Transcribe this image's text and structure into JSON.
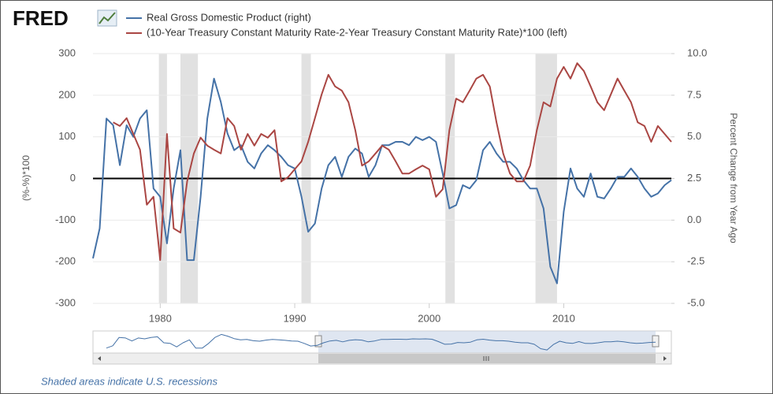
{
  "chart_data": {
    "type": "line",
    "logo": "FRED",
    "footnote": "Shaded areas indicate U.S. recessions",
    "ylabel": "(%-%)*100",
    "y2label": "Percent Change from Year Ago",
    "xlim": [
      1975,
      2018
    ],
    "xticks": [
      1980,
      1990,
      2000,
      2010
    ],
    "ylim": [
      -300,
      300
    ],
    "yticks": [
      -300,
      -200,
      -100,
      0,
      100,
      200,
      300
    ],
    "y2lim": [
      -5,
      10
    ],
    "y2ticks": [
      {
        "value": -5,
        "label": "-5.0"
      },
      {
        "value": -2.5,
        "label": "-2.5"
      },
      {
        "value": 0,
        "label": "0.0"
      },
      {
        "value": 2.5,
        "label": "2.5"
      },
      {
        "value": 5,
        "label": "5.0"
      },
      {
        "value": 7.5,
        "label": "7.5"
      },
      {
        "value": 10,
        "label": "10.0"
      }
    ],
    "grid": true,
    "recessions": [
      [
        1979.9,
        1980.5
      ],
      [
        1981.5,
        1982.8
      ],
      [
        1990.5,
        1991.2
      ],
      [
        2001.2,
        2001.9
      ],
      [
        2007.9,
        2009.5
      ]
    ],
    "x": [
      1975.0,
      1975.5,
      1976.0,
      1976.5,
      1977.0,
      1977.5,
      1978.0,
      1978.5,
      1979.0,
      1979.5,
      1980.0,
      1980.5,
      1981.0,
      1981.5,
      1982.0,
      1982.5,
      1983.0,
      1983.5,
      1984.0,
      1984.5,
      1985.0,
      1985.5,
      1986.0,
      1986.5,
      1987.0,
      1987.5,
      1988.0,
      1988.5,
      1989.0,
      1989.5,
      1990.0,
      1990.5,
      1991.0,
      1991.5,
      1992.0,
      1992.5,
      1993.0,
      1993.5,
      1994.0,
      1994.5,
      1995.0,
      1995.5,
      1996.0,
      1996.5,
      1997.0,
      1997.5,
      1998.0,
      1998.5,
      1999.0,
      1999.5,
      2000.0,
      2000.5,
      2001.0,
      2001.5,
      2002.0,
      2002.5,
      2003.0,
      2003.5,
      2004.0,
      2004.5,
      2005.0,
      2005.5,
      2006.0,
      2006.5,
      2007.0,
      2007.5,
      2008.0,
      2008.5,
      2009.0,
      2009.5,
      2010.0,
      2010.5,
      2011.0,
      2011.5,
      2012.0,
      2012.5,
      2013.0,
      2013.5,
      2014.0,
      2014.5,
      2015.0,
      2015.5,
      2016.0,
      2016.5,
      2017.0,
      2017.5,
      2018.0
    ],
    "series": [
      {
        "name": "Real Gross Domestic Product (right)",
        "color": "#4572a7",
        "axis": "y2",
        "values": [
          -2.3,
          -0.5,
          6.1,
          5.7,
          3.3,
          5.7,
          5.0,
          6.1,
          6.6,
          1.9,
          1.4,
          -1.4,
          1.9,
          4.2,
          -2.4,
          -2.4,
          1.4,
          6.1,
          8.5,
          7.1,
          5.2,
          4.2,
          4.5,
          3.5,
          3.1,
          4.0,
          4.5,
          4.2,
          3.8,
          3.3,
          3.1,
          1.4,
          -0.7,
          -0.2,
          1.9,
          3.3,
          3.8,
          2.6,
          3.8,
          4.3,
          4.0,
          2.6,
          3.3,
          4.5,
          4.5,
          4.7,
          4.7,
          4.5,
          5.0,
          4.8,
          5.0,
          4.7,
          2.8,
          0.7,
          0.9,
          2.1,
          1.9,
          2.4,
          4.2,
          4.7,
          4.0,
          3.5,
          3.5,
          3.1,
          2.4,
          1.9,
          1.9,
          0.7,
          -2.8,
          -3.8,
          0.5,
          3.1,
          1.9,
          1.4,
          2.8,
          1.4,
          1.3,
          1.9,
          2.6,
          2.6,
          3.1,
          2.6,
          1.9,
          1.4,
          1.6,
          2.1,
          2.4
        ]
      },
      {
        "name": "(10-Year Treasury Constant Maturity Rate-2-Year Treasury Constant Maturity Rate)*100 (left)",
        "color": "#aa4643",
        "values": [
          null,
          null,
          null,
          135,
          126,
          145,
          107,
          69,
          -63,
          -44,
          -196,
          107,
          -120,
          -130,
          -7,
          60,
          98,
          79,
          69,
          60,
          145,
          126,
          69,
          107,
          79,
          107,
          98,
          116,
          -7,
          3,
          22,
          41,
          88,
          145,
          202,
          249,
          221,
          211,
          183,
          116,
          31,
          41,
          60,
          79,
          69,
          41,
          12,
          12,
          22,
          31,
          22,
          -44,
          -26,
          116,
          192,
          183,
          211,
          240,
          249,
          221,
          135,
          60,
          12,
          -7,
          -7,
          31,
          116,
          183,
          173,
          240,
          268,
          240,
          277,
          258,
          221,
          183,
          164,
          202,
          240,
          211,
          183,
          135,
          126,
          88,
          126,
          107,
          88
        ]
      }
    ]
  }
}
